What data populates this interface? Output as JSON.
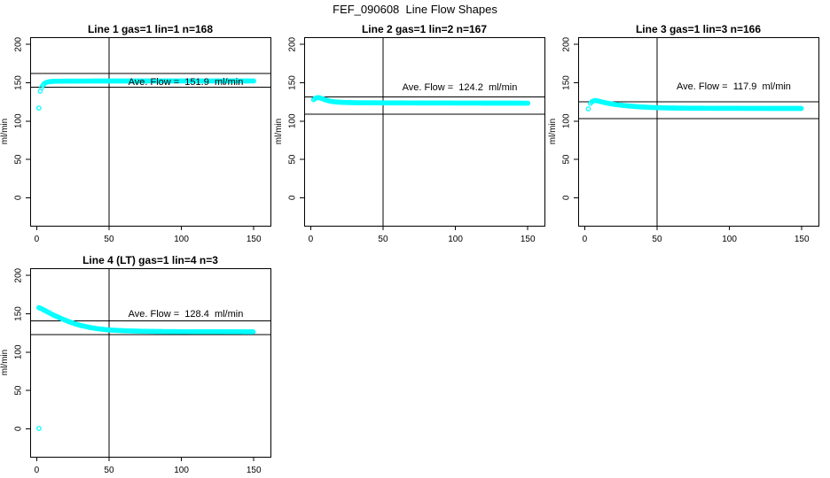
{
  "header": {
    "title": "FEF_090608  Line Flow Shapes"
  },
  "colors": {
    "background": "#ffffff",
    "points": "#00ffff",
    "axis": "#000000",
    "text": "#000000"
  },
  "chart_data": [
    {
      "type": "scatter",
      "title": "Line 1 gas=1 lin=1 n=168",
      "annotation": "Ave. Flow =  151.9  ml/min",
      "annotation_pos": {
        "x": 103,
        "y": 149
      },
      "ave_flow_ml_min": 151.9,
      "n": 168,
      "ylabel": "ml/min",
      "xticks": [
        0,
        50,
        100,
        150
      ],
      "yticks": [
        0,
        50,
        100,
        150,
        200
      ],
      "xlim": [
        -4.5,
        161.5
      ],
      "ylim": [
        -36.5,
        209.5
      ],
      "hlines": [
        162,
        144
      ],
      "vline": 50,
      "marker": "open-circle",
      "outlier_points": [
        [
          1.5,
          117
        ],
        [
          2.5,
          139
        ]
      ],
      "curve": [
        [
          3.5,
          144
        ],
        [
          4.5,
          147.5
        ],
        [
          6,
          150
        ],
        [
          8,
          151.3
        ],
        [
          12,
          152
        ],
        [
          20,
          152.2
        ],
        [
          40,
          152.3
        ],
        [
          80,
          152.4
        ],
        [
          150,
          152.4
        ]
      ]
    },
    {
      "type": "scatter",
      "title": "Line 2 gas=1 lin=2 n=167",
      "annotation": "Ave. Flow =  124.2  ml/min",
      "annotation_pos": {
        "x": 103,
        "y": 143
      },
      "ave_flow_ml_min": 124.2,
      "n": 167,
      "ylabel": "ml/min",
      "xticks": [
        0,
        50,
        100,
        150
      ],
      "yticks": [
        0,
        50,
        100,
        150,
        200
      ],
      "xlim": [
        -4.5,
        161.5
      ],
      "ylim": [
        -36.5,
        209.5
      ],
      "hlines": [
        131.5,
        109
      ],
      "vline": 50,
      "marker": "open-circle",
      "outlier_points": [],
      "curve": [
        [
          2,
          128
        ],
        [
          4,
          130.5
        ],
        [
          6,
          130.5
        ],
        [
          8,
          129.3
        ],
        [
          10,
          127.8
        ],
        [
          13,
          126.2
        ],
        [
          17,
          125
        ],
        [
          22,
          124.4
        ],
        [
          30,
          124
        ],
        [
          50,
          123.8
        ],
        [
          80,
          123.6
        ],
        [
          120,
          123.5
        ],
        [
          150,
          123.4
        ]
      ]
    },
    {
      "type": "scatter",
      "title": "Line 3 gas=1 lin=3 n=166",
      "annotation": "Ave. Flow =  117.9  ml/min",
      "annotation_pos": {
        "x": 103,
        "y": 144
      },
      "ave_flow_ml_min": 117.9,
      "n": 166,
      "ylabel": "ml/min",
      "xticks": [
        0,
        50,
        100,
        150
      ],
      "yticks": [
        0,
        50,
        100,
        150,
        200
      ],
      "xlim": [
        -4.5,
        161.5
      ],
      "ylim": [
        -36.5,
        209.5
      ],
      "hlines": [
        125,
        103.5
      ],
      "vline": 50,
      "marker": "open-circle",
      "outlier_points": [
        [
          2.5,
          116
        ]
      ],
      "curve": [
        [
          4,
          123
        ],
        [
          5,
          125.5
        ],
        [
          7,
          127
        ],
        [
          9,
          126.3
        ],
        [
          12,
          125
        ],
        [
          16,
          123.3
        ],
        [
          20,
          122
        ],
        [
          25,
          120.8
        ],
        [
          30,
          119.8
        ],
        [
          38,
          118.6
        ],
        [
          46,
          117.8
        ],
        [
          56,
          117.2
        ],
        [
          70,
          116.9
        ],
        [
          90,
          116.7
        ],
        [
          115,
          116.6
        ],
        [
          150,
          116.5
        ]
      ]
    },
    {
      "type": "scatter",
      "title": "Line 4 (LT) gas=1 lin=4 n=3",
      "annotation": "Ave. Flow =  128.4  ml/min",
      "annotation_pos": {
        "x": 103,
        "y": 148
      },
      "ave_flow_ml_min": 128.4,
      "n": 3,
      "ylabel": "ml/min",
      "xticks": [
        0,
        50,
        100,
        150
      ],
      "yticks": [
        0,
        50,
        100,
        150,
        200
      ],
      "xlim": [
        -4.5,
        161.5
      ],
      "ylim": [
        -36.5,
        209.5
      ],
      "hlines": [
        141,
        123
      ],
      "vline": 50,
      "marker": "open-circle",
      "outlier_points": [
        [
          1.6,
          0.5
        ]
      ],
      "curve": [
        [
          1.5,
          158
        ],
        [
          3,
          157
        ],
        [
          5,
          155
        ],
        [
          7,
          153
        ],
        [
          9,
          151
        ],
        [
          12,
          148
        ],
        [
          15,
          145.5
        ],
        [
          18,
          143
        ],
        [
          22,
          140
        ],
        [
          26,
          137.3
        ],
        [
          30,
          135
        ],
        [
          34,
          133.3
        ],
        [
          38,
          131.8
        ],
        [
          43,
          130.3
        ],
        [
          48,
          129.3
        ],
        [
          55,
          128.4
        ],
        [
          62,
          127.8
        ],
        [
          72,
          127.3
        ],
        [
          85,
          126.9
        ],
        [
          100,
          126.7
        ],
        [
          125,
          126.6
        ],
        [
          150,
          126.5
        ]
      ]
    }
  ]
}
